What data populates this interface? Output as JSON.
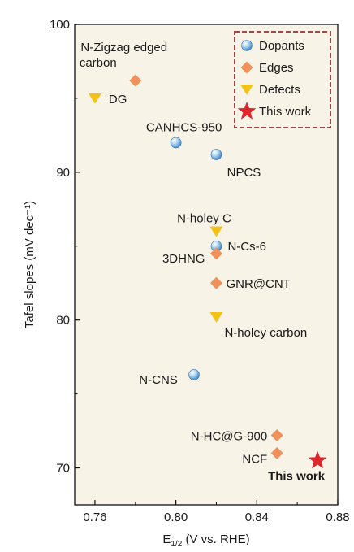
{
  "chart_data": {
    "type": "scatter",
    "xlabel_main": "E",
    "xlabel_sub": "1/2",
    "xlabel_rest": " (V vs. RHE)",
    "ylabel": "Tafel slopes (mV dec⁻¹)",
    "xlim": [
      0.75,
      0.88
    ],
    "ylim": [
      67.5,
      100
    ],
    "x_ticks": [
      {
        "value": 0.76,
        "label": "0.76"
      },
      {
        "value": 0.8,
        "label": "0.80"
      },
      {
        "value": 0.84,
        "label": "0.84"
      },
      {
        "value": 0.88,
        "label": "0.88"
      }
    ],
    "y_ticks": [
      {
        "value": 70,
        "label": "70"
      },
      {
        "value": 80,
        "label": "80"
      },
      {
        "value": 90,
        "label": "90"
      },
      {
        "value": 100,
        "label": "100"
      }
    ],
    "background_color": "#f7f3e6",
    "series": [
      {
        "name": "Dopants",
        "marker": "sphere",
        "color": "#5a9fd6",
        "points": [
          {
            "label": "CANHCS-950",
            "x": 0.8,
            "y": 92.0
          },
          {
            "label": "NPCS",
            "x": 0.82,
            "y": 91.2
          },
          {
            "label": "N-Cs-6",
            "x": 0.82,
            "y": 85.0
          },
          {
            "label": "N-CNS",
            "x": 0.809,
            "y": 76.3
          }
        ]
      },
      {
        "name": "Edges",
        "marker": "diamond",
        "color": "#f0905a",
        "points": [
          {
            "label": "N-Zigzag edged carbon",
            "x": 0.78,
            "y": 96.2
          },
          {
            "label": "3DHNG",
            "x": 0.82,
            "y": 84.5
          },
          {
            "label": "GNR@CNT",
            "x": 0.82,
            "y": 82.5
          },
          {
            "label": "N-HC@G-900",
            "x": 0.85,
            "y": 72.2
          },
          {
            "label": "NCF",
            "x": 0.85,
            "y": 71.0
          }
        ]
      },
      {
        "name": "Defects",
        "marker": "triangle-down",
        "color": "#f2c21b",
        "points": [
          {
            "label": "DG",
            "x": 0.76,
            "y": 95.0
          },
          {
            "label": "N-holey C",
            "x": 0.82,
            "y": 86.0
          },
          {
            "label": "N-holey carbon",
            "x": 0.82,
            "y": 80.2
          }
        ]
      },
      {
        "name": "This work",
        "marker": "star",
        "color": "#e0242b",
        "points": [
          {
            "label": "This work",
            "x": 0.87,
            "y": 70.5
          }
        ]
      }
    ],
    "legend": {
      "position": "top-right",
      "border_color": "#a24747",
      "entries": [
        "Dopants",
        "Edges",
        "Defects",
        "This work"
      ]
    }
  }
}
